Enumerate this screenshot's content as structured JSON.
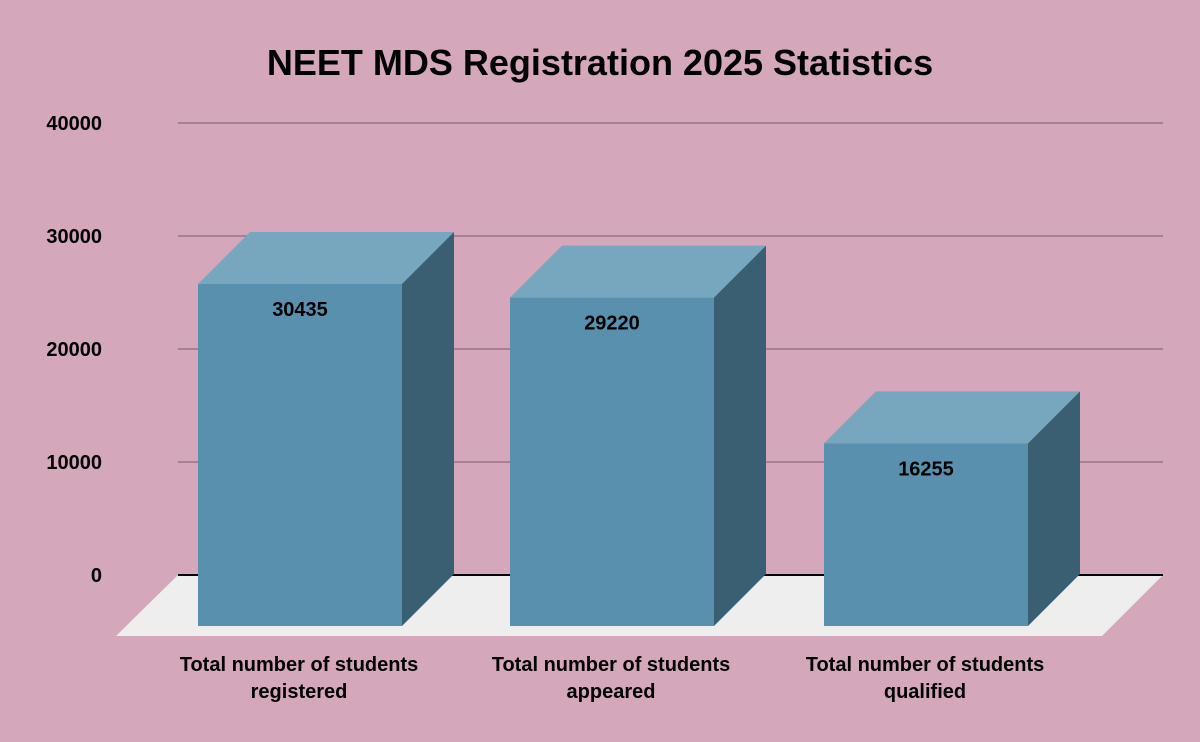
{
  "chart_data": {
    "type": "bar",
    "title": "NEET MDS Registration 2025 Statistics",
    "xlabel": "",
    "ylabel": "",
    "categories": [
      [
        "Total number of students",
        "registered"
      ],
      [
        "Total number of students",
        "appeared"
      ],
      [
        "Total number of students",
        "qualified"
      ]
    ],
    "values": [
      30435,
      29220,
      16255
    ],
    "data_labels": [
      "30435",
      "29220",
      "16255"
    ],
    "ylim": [
      0,
      40000
    ],
    "yticks": [
      "0",
      "10000",
      "20000",
      "30000",
      "40000"
    ],
    "grid": true,
    "style_3d": true,
    "colors": {
      "background": "#d4a7bb",
      "bar_front": "#5990ae",
      "bar_top": "#77a7bf",
      "bar_side": "#3a5f72",
      "floor": "#eeeeee",
      "gridline": "#9a7488"
    }
  }
}
